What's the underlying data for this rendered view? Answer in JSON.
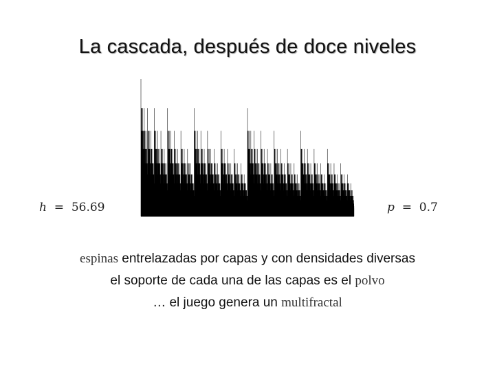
{
  "slide": {
    "title": "La cascada, después de doce niveles",
    "left_param": {
      "symbol": "h",
      "equals": "=",
      "value": "56.69"
    },
    "right_param": {
      "symbol": "p",
      "equals": "=",
      "value": "0.7"
    },
    "lines": [
      {
        "lead_serif": "espinas",
        "rest": " entrelazadas por capas y con densidades diversas"
      },
      {
        "lead": "el soporte de cada una de las capas es el ",
        "tail_serif": "polvo"
      },
      {
        "lead": "… el juego genera un ",
        "tail_serif": "multifractal"
      }
    ]
  },
  "diagram": {
    "levels": 12,
    "p": 0.7,
    "spike_color": "#000000"
  }
}
